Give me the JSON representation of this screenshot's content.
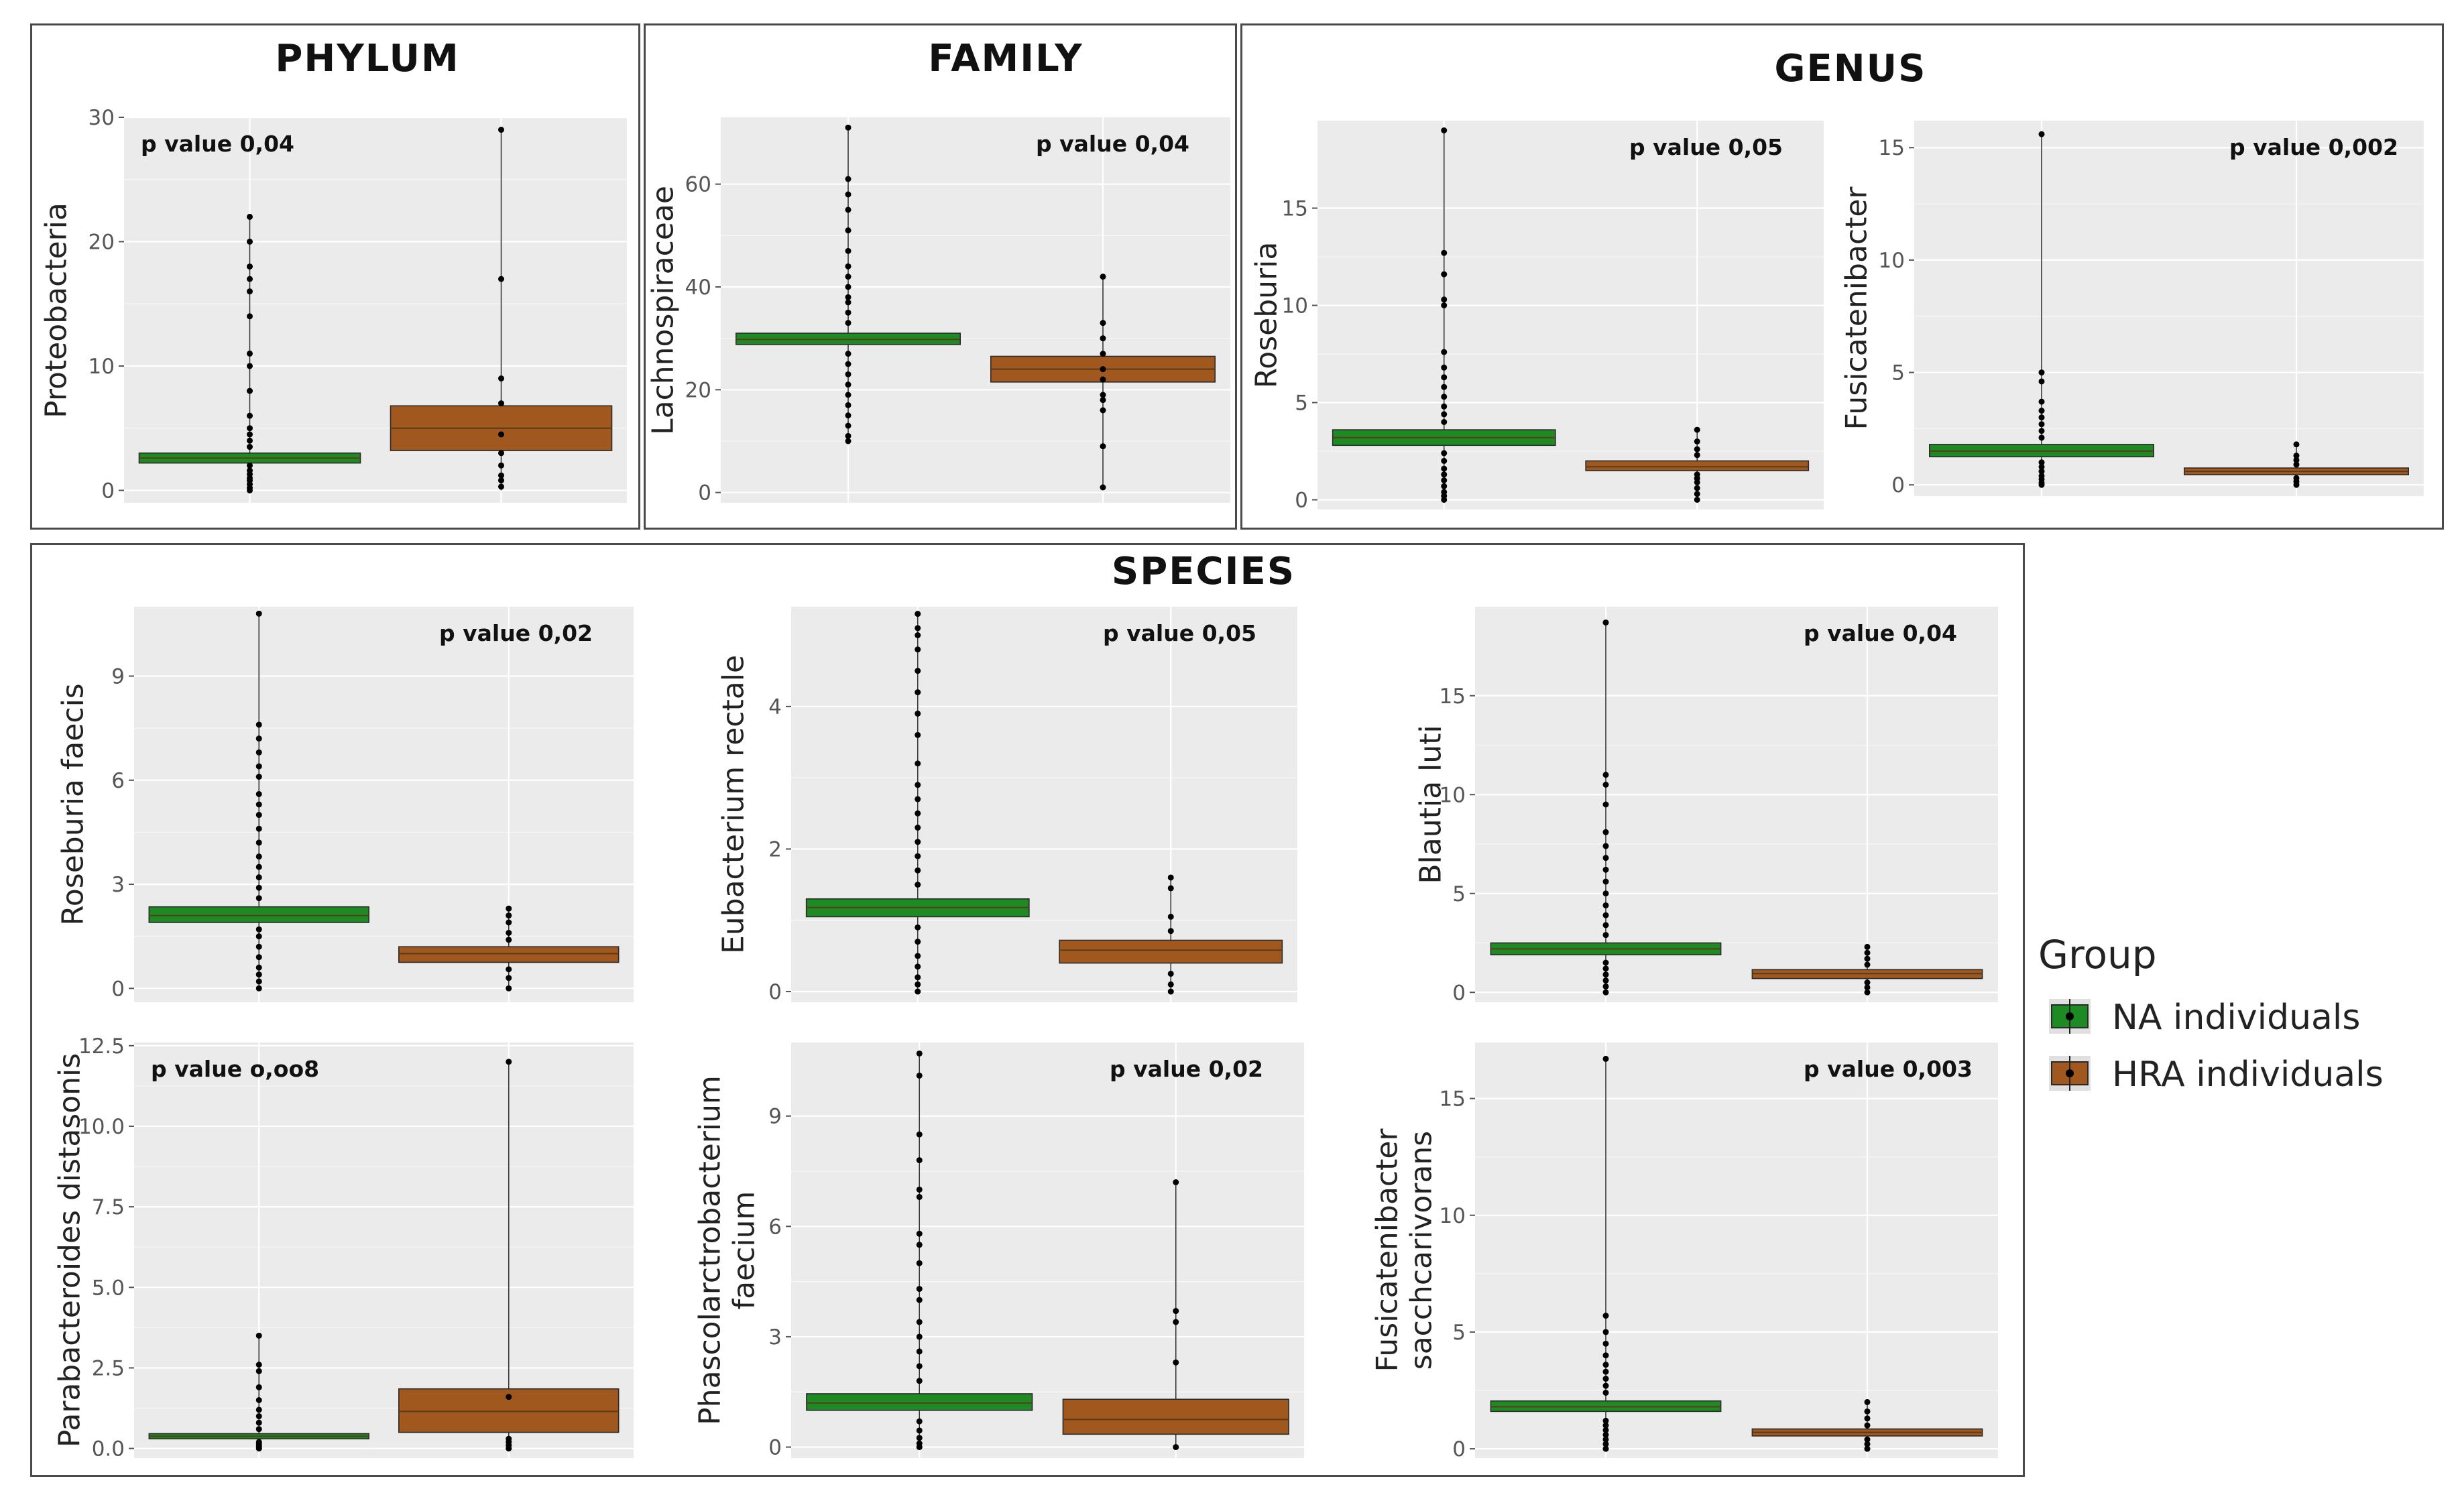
{
  "sections": {
    "phylum": "PHYLUM",
    "family": "FAMILY",
    "genus": "GENUS",
    "species": "SPECIES"
  },
  "legend": {
    "title": "Group",
    "items": [
      {
        "label": "NA individuals",
        "color": "#1e8a24"
      },
      {
        "label": "HRA individuals",
        "color": "#a0581f"
      }
    ]
  },
  "colors": {
    "panel_bg": "#ebebeb",
    "grid": "#ffffff",
    "na_fill": "#1e8a24",
    "hra_fill": "#a0581f",
    "median": "#5a3a1a"
  },
  "chart_data": [
    {
      "id": "proteobacteria",
      "type": "box",
      "ylabel": "Proteobacteria",
      "p_value": "p value 0,04",
      "pval_pos": "top-left",
      "ylim": [
        -1,
        30
      ],
      "yticks": [
        0,
        10,
        20,
        30
      ],
      "ytick_labels": [
        "0",
        "10",
        "20",
        "30"
      ],
      "categories": [
        "NA individuals",
        "HRA individuals"
      ],
      "series": [
        {
          "name": "NA individuals",
          "q1": 2.2,
          "median": 2.6,
          "q3": 3.0,
          "min": 0,
          "max": 22,
          "points": [
            0,
            0.2,
            0.5,
            0.8,
            1,
            1.3,
            1.6,
            2,
            3.5,
            4,
            4.5,
            5,
            6,
            8,
            10,
            11,
            14,
            16,
            17,
            18,
            20,
            22
          ]
        },
        {
          "name": "HRA individuals",
          "q1": 3.2,
          "median": 5.0,
          "q3": 6.8,
          "min": 0,
          "max": 29,
          "points": [
            0.3,
            0.8,
            1.2,
            2,
            3,
            4.5,
            7,
            9,
            17,
            29
          ]
        }
      ]
    },
    {
      "id": "lachnospiraceae",
      "type": "box",
      "ylabel": "Lachnospiraceae",
      "p_value": "p value 0,04",
      "pval_pos": "top-right",
      "ylim": [
        -2,
        73
      ],
      "yticks": [
        0,
        20,
        40,
        60
      ],
      "ytick_labels": [
        "0",
        "20",
        "40",
        "60"
      ],
      "categories": [
        "NA individuals",
        "HRA individuals"
      ],
      "series": [
        {
          "name": "NA individuals",
          "q1": 28.8,
          "median": 29.8,
          "q3": 31,
          "min": 10,
          "max": 71,
          "points": [
            10,
            11,
            13,
            15,
            17,
            19,
            21,
            23,
            25,
            27,
            33,
            35,
            37,
            38,
            40,
            42,
            44,
            47,
            51,
            55,
            58,
            61,
            71
          ]
        },
        {
          "name": "HRA individuals",
          "q1": 21.5,
          "median": 24,
          "q3": 26.5,
          "min": 1,
          "max": 42,
          "points": [
            1,
            9,
            16,
            18,
            19,
            22,
            24,
            27,
            30,
            33,
            42
          ]
        }
      ]
    },
    {
      "id": "roseburia",
      "type": "box",
      "ylabel": "Roseburia",
      "p_value": "p value 0,05",
      "pval_pos": "top-right",
      "ylim": [
        -0.5,
        19.5
      ],
      "yticks": [
        0,
        5,
        10,
        15
      ],
      "ytick_labels": [
        "0",
        "5",
        "10",
        "15"
      ],
      "categories": [
        "NA individuals",
        "HRA individuals"
      ],
      "series": [
        {
          "name": "NA individuals",
          "q1": 2.8,
          "median": 3.2,
          "q3": 3.6,
          "min": 0,
          "max": 19,
          "points": [
            0,
            0.2,
            0.4,
            0.7,
            1,
            1.3,
            1.6,
            2,
            2.4,
            4,
            4.4,
            4.8,
            5.3,
            5.8,
            6.3,
            6.8,
            7.6,
            10,
            10.3,
            11.6,
            12.7,
            19
          ]
        },
        {
          "name": "HRA individuals",
          "q1": 1.5,
          "median": 1.7,
          "q3": 2.0,
          "min": 0,
          "max": 3.6,
          "points": [
            0,
            0.3,
            0.6,
            0.9,
            1.1,
            1.3,
            2.3,
            2.6,
            3.0,
            3.6
          ]
        }
      ]
    },
    {
      "id": "fusicatenibacter",
      "type": "box",
      "ylabel": "Fusicatenibacter",
      "p_value": "p value 0,002",
      "pval_pos": "top-right",
      "ylim": [
        -0.5,
        16.2
      ],
      "yticks": [
        0,
        5,
        10,
        15
      ],
      "ytick_labels": [
        "0",
        "5",
        "10",
        "15"
      ],
      "categories": [
        "NA individuals",
        "HRA individuals"
      ],
      "series": [
        {
          "name": "NA individuals",
          "q1": 1.25,
          "median": 1.5,
          "q3": 1.8,
          "min": 0,
          "max": 15.6,
          "points": [
            0,
            0.1,
            0.25,
            0.4,
            0.6,
            0.8,
            1,
            2.1,
            2.4,
            2.7,
            3.0,
            3.3,
            3.7,
            4.6,
            5.0,
            15.6
          ]
        },
        {
          "name": "HRA individuals",
          "q1": 0.45,
          "median": 0.6,
          "q3": 0.75,
          "min": 0,
          "max": 1.8,
          "points": [
            0,
            0.15,
            0.3,
            0.9,
            1.1,
            1.3,
            1.8
          ]
        }
      ]
    },
    {
      "id": "roseburia_faecis",
      "type": "box",
      "ylabel": "Roseburia faecis",
      "p_value": "p value 0,02",
      "pval_pos": "top-right",
      "ylim": [
        -0.4,
        11
      ],
      "yticks": [
        0,
        3,
        6,
        9
      ],
      "ytick_labels": [
        "0",
        "3",
        "6",
        "9"
      ],
      "categories": [
        "NA individuals",
        "HRA individuals"
      ],
      "series": [
        {
          "name": "NA individuals",
          "q1": 1.9,
          "median": 2.1,
          "q3": 2.35,
          "min": 0,
          "max": 10.8,
          "points": [
            0,
            0.2,
            0.4,
            0.6,
            0.9,
            1.2,
            1.5,
            1.7,
            2.6,
            2.9,
            3.2,
            3.5,
            3.8,
            4.2,
            4.6,
            5.0,
            5.3,
            5.6,
            6.1,
            6.4,
            6.8,
            7.2,
            7.6,
            10.8
          ]
        },
        {
          "name": "HRA individuals",
          "q1": 0.75,
          "median": 1.0,
          "q3": 1.2,
          "min": 0,
          "max": 2.3,
          "points": [
            0,
            0.3,
            0.55,
            1.4,
            1.6,
            1.9,
            2.1,
            2.3
          ]
        }
      ]
    },
    {
      "id": "eubacterium_rectale",
      "type": "box",
      "ylabel": "Eubacterium rectale",
      "p_value": "p value 0,05",
      "pval_pos": "top-right",
      "ylim": [
        -0.15,
        5.4
      ],
      "yticks": [
        0,
        2,
        4
      ],
      "ytick_labels": [
        "0",
        "2",
        "4"
      ],
      "categories": [
        "NA individuals",
        "HRA individuals"
      ],
      "series": [
        {
          "name": "NA individuals",
          "q1": 1.05,
          "median": 1.18,
          "q3": 1.3,
          "min": 0,
          "max": 5.3,
          "points": [
            0,
            0.1,
            0.2,
            0.35,
            0.5,
            0.7,
            0.9,
            1.5,
            1.7,
            1.9,
            2.1,
            2.3,
            2.5,
            2.7,
            2.9,
            3.2,
            3.6,
            3.9,
            4.2,
            4.5,
            4.8,
            5.0,
            5.1,
            5.3
          ]
        },
        {
          "name": "HRA individuals",
          "q1": 0.4,
          "median": 0.58,
          "q3": 0.72,
          "min": 0,
          "max": 1.6,
          "points": [
            0,
            0.1,
            0.25,
            0.85,
            1.05,
            1.45,
            1.6
          ]
        }
      ]
    },
    {
      "id": "blautia_luti",
      "type": "box",
      "ylabel": "Blautia luti",
      "p_value": "p value 0,04",
      "pval_pos": "top-right",
      "ylim": [
        -0.5,
        19.5
      ],
      "yticks": [
        0,
        5,
        10,
        15
      ],
      "ytick_labels": [
        "0",
        "5",
        "10",
        "15"
      ],
      "categories": [
        "NA individuals",
        "HRA individuals"
      ],
      "series": [
        {
          "name": "NA individuals",
          "q1": 1.9,
          "median": 2.2,
          "q3": 2.5,
          "min": 0,
          "max": 18.7,
          "points": [
            0,
            0.3,
            0.6,
            0.9,
            1.2,
            1.5,
            2.9,
            3.4,
            3.9,
            4.4,
            5,
            5.6,
            6.2,
            6.8,
            7.4,
            8.1,
            9.5,
            10.5,
            11,
            18.7
          ]
        },
        {
          "name": "HRA individuals",
          "q1": 0.7,
          "median": 0.95,
          "q3": 1.15,
          "min": 0,
          "max": 2.3,
          "points": [
            0,
            0.25,
            0.5,
            1.4,
            1.7,
            2.0,
            2.3
          ]
        }
      ]
    },
    {
      "id": "parabacteroides_distasonis",
      "type": "box",
      "ylabel": "Parabacteroides distasonis",
      "p_value": "p value o,oo8",
      "pval_pos": "top-left",
      "ylim": [
        -0.3,
        12.6
      ],
      "yticks": [
        0,
        2.5,
        5,
        7.5,
        10,
        12.5
      ],
      "ytick_labels": [
        "0.0",
        "2.5",
        "5.0",
        "7.5",
        "10.0",
        "12.5"
      ],
      "categories": [
        "NA individuals",
        "HRA individuals"
      ],
      "series": [
        {
          "name": "NA individuals",
          "q1": 0.3,
          "median": 0.38,
          "q3": 0.46,
          "min": 0,
          "max": 3.5,
          "points": [
            0,
            0.05,
            0.1,
            0.15,
            0.2,
            0.6,
            0.8,
            1.0,
            1.2,
            1.5,
            1.9,
            2.4,
            2.6,
            3.5
          ]
        },
        {
          "name": "HRA individuals",
          "q1": 0.5,
          "median": 1.15,
          "q3": 1.85,
          "min": 0,
          "max": 12,
          "points": [
            0,
            0.1,
            0.2,
            0.3,
            1.6,
            12
          ]
        }
      ]
    },
    {
      "id": "phascolarctobacterium_faecium",
      "type": "box",
      "ylabel": "Phascolarctrobacterium faecium",
      "ylabel_lines": [
        "Phascolarctrobacterium",
        "faecium"
      ],
      "p_value": "p value 0,02",
      "pval_pos": "top-right",
      "ylim": [
        -0.3,
        11
      ],
      "yticks": [
        0,
        3,
        6,
        9
      ],
      "ytick_labels": [
        "0",
        "3",
        "6",
        "9"
      ],
      "categories": [
        "NA individuals",
        "HRA individuals"
      ],
      "series": [
        {
          "name": "NA individuals",
          "q1": 1.0,
          "median": 1.2,
          "q3": 1.45,
          "min": 0,
          "max": 10.7,
          "points": [
            0,
            0.1,
            0.25,
            0.45,
            0.7,
            1.8,
            2.2,
            2.6,
            3.0,
            3.4,
            4.0,
            4.3,
            5.0,
            5.5,
            5.8,
            6.8,
            7.0,
            7.8,
            8.5,
            10.1,
            10.7
          ]
        },
        {
          "name": "HRA individuals",
          "q1": 0.35,
          "median": 0.75,
          "q3": 1.3,
          "min": 0,
          "max": 7.2,
          "points": [
            0,
            2.3,
            3.4,
            3.7,
            7.2
          ]
        }
      ]
    },
    {
      "id": "fusicatenibacter_saccharivorans",
      "type": "box",
      "ylabel": "Fusicatenibacter sacchcarivorans",
      "ylabel_lines": [
        "Fusicatenibacter",
        "sacchcarivorans"
      ],
      "p_value": "p value 0,003",
      "pval_pos": "top-right",
      "ylim": [
        -0.4,
        17.4
      ],
      "yticks": [
        0,
        5,
        10,
        15
      ],
      "ytick_labels": [
        "0",
        "5",
        "10",
        "15"
      ],
      "categories": [
        "NA individuals",
        "HRA individuals"
      ],
      "series": [
        {
          "name": "NA individuals",
          "q1": 1.6,
          "median": 1.8,
          "q3": 2.05,
          "min": 0,
          "max": 16.7,
          "points": [
            0,
            0.2,
            0.4,
            0.6,
            0.8,
            1.0,
            1.2,
            2.4,
            2.7,
            3.0,
            3.3,
            3.6,
            4.0,
            4.5,
            5.0,
            5.7,
            16.7
          ]
        },
        {
          "name": "HRA individuals",
          "q1": 0.55,
          "median": 0.7,
          "q3": 0.85,
          "min": 0,
          "max": 2.0,
          "points": [
            0,
            0.2,
            0.4,
            1.0,
            1.3,
            1.6,
            2.0
          ]
        }
      ]
    }
  ]
}
